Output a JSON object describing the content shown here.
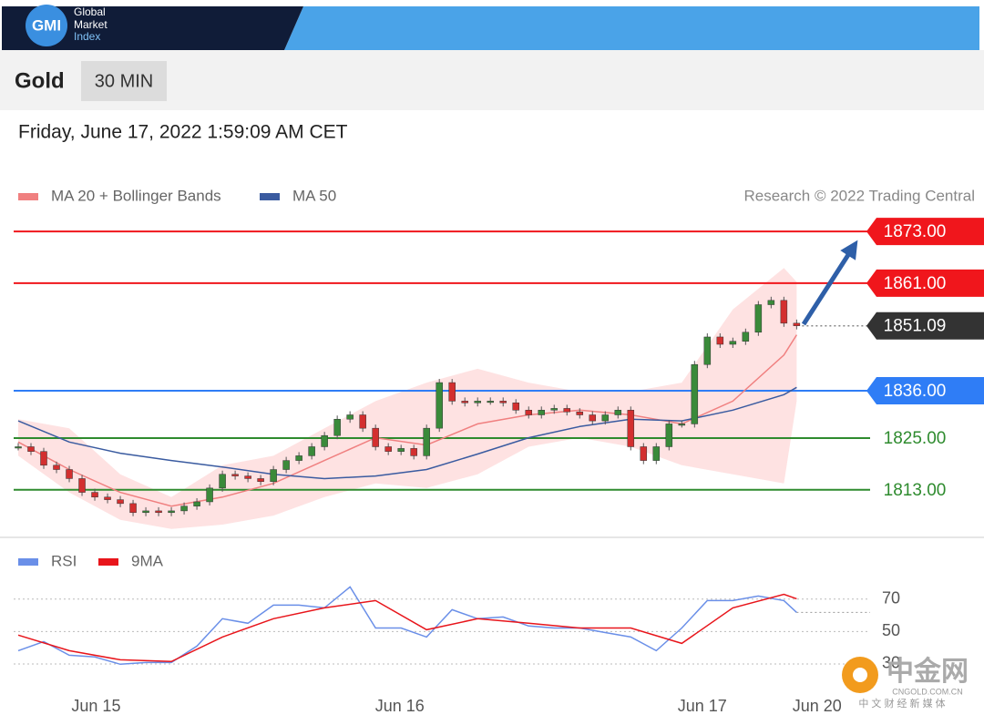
{
  "header": {
    "logo": "GMI",
    "brand": [
      "Global",
      "Market",
      "Index"
    ]
  },
  "symbol": "Gold",
  "timeframe": "30 MIN",
  "timestamp": "Friday, June 17, 2022 1:59:09 AM CET",
  "credit": "Research © 2022 Trading Central",
  "watermark": {
    "logo": "中金网",
    "url": "CNGOLD.COM.CN",
    "tagline": "中 文 财 经 新 媒 体"
  },
  "chart_data": [
    {
      "type": "candlestick",
      "xlim": [
        0,
        66.4
      ],
      "ylim": [
        1803,
        1876
      ],
      "up_color": "#3a8a3a",
      "down_color": "#d32f2f",
      "values": [
        1823.0,
        1821.9,
        1818.7,
        1817.7,
        1815.6,
        1812.4,
        1811.3,
        1810.7,
        1809.8,
        1807.7,
        1808.1,
        1807.7,
        1808.1,
        1809.2,
        1810.2,
        1813.4,
        1816.6,
        1816.2,
        1815.6,
        1814.9,
        1817.7,
        1819.8,
        1820.9,
        1823.0,
        1825.6,
        1829.4,
        1830.4,
        1827.3,
        1823.0,
        1821.9,
        1822.6,
        1820.9,
        1827.3,
        1837.9,
        1833.6,
        1833.2,
        1833.6,
        1833.6,
        1833.2,
        1831.5,
        1830.4,
        1831.5,
        1831.9,
        1831.1,
        1830.4,
        1829.0,
        1830.4,
        1831.5,
        1823.0,
        1819.8,
        1823.0,
        1828.3,
        1828.3,
        1842.1,
        1848.5,
        1846.8,
        1847.5,
        1849.6,
        1856.0,
        1857.0,
        1851.7,
        1851.1
      ],
      "overlays": [
        {
          "name": "MA 20 + Bollinger Bands",
          "color": "#f08080",
          "band_color": "#fdd8d8",
          "x": [
            0,
            4,
            8,
            12,
            16,
            20,
            24,
            28,
            32,
            36,
            40,
            44,
            48,
            52,
            56,
            60,
            61
          ],
          "values": [
            1824.1,
            1817.7,
            1812.4,
            1809.2,
            1811.3,
            1814.5,
            1819.8,
            1825.1,
            1823.4,
            1828.3,
            1830.4,
            1831.5,
            1830.4,
            1828.3,
            1833.6,
            1844.3,
            1849.0
          ],
          "upper": [
            1829.4,
            1827.3,
            1816.6,
            1811.3,
            1818.7,
            1820.9,
            1827.3,
            1833.6,
            1837.9,
            1841.1,
            1837.9,
            1835.8,
            1835.8,
            1837.9,
            1854.9,
            1864.5,
            1861.3
          ],
          "lower": [
            1820.9,
            1812.4,
            1806.0,
            1803.9,
            1804.9,
            1807.0,
            1811.3,
            1814.5,
            1813.4,
            1816.6,
            1823.0,
            1825.1,
            1823.0,
            1818.7,
            1816.6,
            1814.5,
            1833.6
          ]
        },
        {
          "name": "MA 50",
          "color": "#3a5ba0",
          "x": [
            0,
            4,
            8,
            12,
            16,
            20,
            24,
            28,
            32,
            36,
            40,
            44,
            48,
            52,
            56,
            60,
            61
          ],
          "values": [
            1829.0,
            1824.1,
            1821.5,
            1819.8,
            1818.3,
            1816.6,
            1815.6,
            1816.2,
            1817.7,
            1821.3,
            1825.1,
            1827.7,
            1829.4,
            1829.0,
            1831.5,
            1835.1,
            1836.8
          ]
        }
      ],
      "levels": [
        {
          "value": 1873,
          "label": "1873.00",
          "color": "#f0161c",
          "line": "solid",
          "boxed": true
        },
        {
          "value": 1861,
          "label": "1861.00",
          "color": "#f0161c",
          "line": "solid",
          "boxed": true
        },
        {
          "value": 1851.09,
          "label": "1851.09",
          "color": "#333333",
          "line": "dotted",
          "boxed": true
        },
        {
          "value": 1836,
          "label": "1836.00",
          "color": "#2f7df6",
          "line": "solid",
          "boxed": true
        },
        {
          "value": 1825,
          "label": "1825.00",
          "color": "#2e8b2e",
          "line": "solid",
          "boxed": false
        },
        {
          "value": 1813,
          "label": "1813.00",
          "color": "#2e8b2e",
          "line": "solid",
          "boxed": false
        }
      ]
    },
    {
      "type": "line",
      "xlim": [
        0,
        66.4
      ],
      "ylim": [
        21,
        80
      ],
      "yticks": [
        70,
        50,
        30
      ],
      "xticks": [
        {
          "value": 6.1,
          "label": "Jun 15"
        },
        {
          "value": 29.9,
          "label": "Jun 16"
        },
        {
          "value": 53.6,
          "label": "Jun 17"
        },
        {
          "value": 62.6,
          "label": "Jun 20"
        }
      ],
      "series": [
        {
          "name": "RSI",
          "color": "#6a8fe8",
          "x": [
            0,
            2,
            4,
            6,
            8,
            10,
            12,
            14,
            16,
            18,
            20,
            22,
            24,
            26,
            28,
            30,
            32,
            34,
            36,
            38,
            40,
            42,
            44,
            46,
            48,
            50,
            52,
            54,
            56,
            58,
            60,
            61
          ],
          "values": [
            38.2,
            43.8,
            35.4,
            34.3,
            29.8,
            30.9,
            30.9,
            41.0,
            57.9,
            55.1,
            66.3,
            66.3,
            64.6,
            77.5,
            52.2,
            52.2,
            46.6,
            63.5,
            57.9,
            59.0,
            53.4,
            52.2,
            52.2,
            49.4,
            46.6,
            38.2,
            52.2,
            69.1,
            69.1,
            71.9,
            69.1,
            61.8
          ]
        },
        {
          "name": "9MA",
          "color": "#e8151b",
          "x": [
            0,
            4,
            8,
            12,
            16,
            20,
            24,
            28,
            32,
            36,
            40,
            44,
            48,
            52,
            56,
            60,
            61
          ],
          "values": [
            47.8,
            38.2,
            32.6,
            31.5,
            46.6,
            57.9,
            64.6,
            69.1,
            51.1,
            57.9,
            55.1,
            52.2,
            52.2,
            42.7,
            64.6,
            73.0,
            70.2
          ]
        }
      ]
    }
  ]
}
